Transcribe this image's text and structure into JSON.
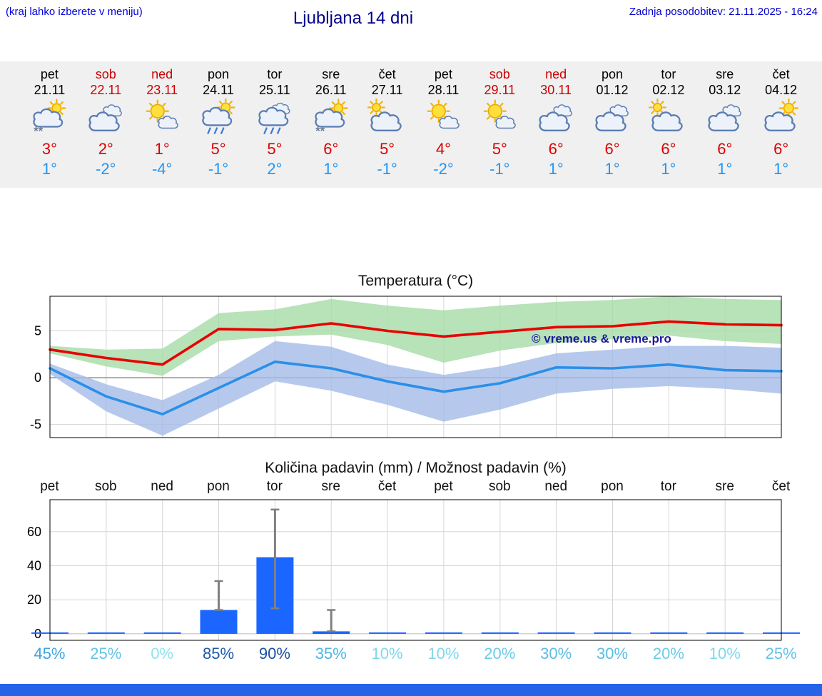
{
  "header": {
    "menu_note": "(kraj lahko izberete v meniju)",
    "title": "Ljubljana 14 dni",
    "last_update": "Zadnja posodobitev: 21.11.2025 - 16:24"
  },
  "colors": {
    "accent_blue": "#0000cc",
    "weekend_red": "#cc0000",
    "temp_max_red": "#dd0000",
    "temp_min_blue": "#2196f3",
    "bar_blue": "#1a66ff",
    "footer_blue": "#2563e8"
  },
  "forecast_strip": {
    "days": [
      {
        "name": "pet",
        "date": "21.11",
        "weekend": false,
        "icon": "sun-cloud-snow",
        "tmax": "3°",
        "tmin": "1°"
      },
      {
        "name": "sob",
        "date": "22.11",
        "weekend": true,
        "icon": "cloud",
        "tmax": "2°",
        "tmin": "-2°"
      },
      {
        "name": "ned",
        "date": "23.11",
        "weekend": true,
        "icon": "sun-small-cloud",
        "tmax": "1°",
        "tmin": "-4°"
      },
      {
        "name": "pon",
        "date": "24.11",
        "weekend": false,
        "icon": "sun-cloud-rain",
        "tmax": "5°",
        "tmin": "-1°"
      },
      {
        "name": "tor",
        "date": "25.11",
        "weekend": false,
        "icon": "cloud-rain",
        "tmax": "5°",
        "tmin": "2°"
      },
      {
        "name": "sre",
        "date": "26.11",
        "weekend": false,
        "icon": "sun-cloud-snow",
        "tmax": "6°",
        "tmin": "1°"
      },
      {
        "name": "čet",
        "date": "27.11",
        "weekend": false,
        "icon": "cloud-sun",
        "tmax": "5°",
        "tmin": "-1°"
      },
      {
        "name": "pet",
        "date": "28.11",
        "weekend": false,
        "icon": "sun-small-cloud",
        "tmax": "4°",
        "tmin": "-2°"
      },
      {
        "name": "sob",
        "date": "29.11",
        "weekend": true,
        "icon": "sun-small-cloud",
        "tmax": "5°",
        "tmin": "-1°"
      },
      {
        "name": "ned",
        "date": "30.11",
        "weekend": true,
        "icon": "cloud",
        "tmax": "6°",
        "tmin": "1°"
      },
      {
        "name": "pon",
        "date": "01.12",
        "weekend": false,
        "icon": "cloud",
        "tmax": "6°",
        "tmin": "1°"
      },
      {
        "name": "tor",
        "date": "02.12",
        "weekend": false,
        "icon": "cloud-sun",
        "tmax": "6°",
        "tmin": "1°"
      },
      {
        "name": "sre",
        "date": "03.12",
        "weekend": false,
        "icon": "cloud",
        "tmax": "6°",
        "tmin": "1°"
      },
      {
        "name": "čet",
        "date": "04.12",
        "weekend": false,
        "icon": "sun-cloud",
        "tmax": "6°",
        "tmin": "1°"
      }
    ]
  },
  "chart_data": [
    {
      "type": "line",
      "title": "Temperatura (°C)",
      "watermark": "© vreme.us & vreme.pro",
      "x_labels": [
        "pet",
        "sob",
        "ned",
        "pon",
        "tor",
        "sre",
        "čet",
        "pet",
        "sob",
        "ned",
        "pon",
        "tor",
        "sre",
        "čet"
      ],
      "ylim": [
        -6.4,
        8.7
      ],
      "yticks": [
        -5,
        0,
        5
      ],
      "grid": true,
      "legend": "none",
      "series": [
        {
          "key": "tmax",
          "color": "#e80000",
          "values": [
            3.0,
            2.1,
            1.4,
            5.2,
            5.1,
            5.8,
            5.0,
            4.4,
            4.9,
            5.4,
            5.5,
            6.0,
            5.7,
            5.6
          ]
        },
        {
          "key": "tmin",
          "color": "#2b8fe8",
          "values": [
            1.0,
            -2.0,
            -3.9,
            -1.1,
            1.7,
            1.0,
            -0.4,
            -1.5,
            -0.6,
            1.1,
            1.0,
            1.4,
            0.8,
            0.7
          ]
        }
      ],
      "bands": [
        {
          "key": "tmax-range",
          "color": "#a6dba6",
          "upper": [
            3.4,
            3.0,
            3.1,
            6.9,
            7.3,
            8.4,
            7.7,
            7.2,
            7.7,
            8.1,
            8.3,
            8.7,
            8.4,
            8.3
          ],
          "lower": [
            2.6,
            1.2,
            0.2,
            3.9,
            4.4,
            4.6,
            3.5,
            1.6,
            2.9,
            3.7,
            4.1,
            4.5,
            3.9,
            3.6
          ]
        },
        {
          "key": "tmin-range",
          "color": "#a4bce8",
          "upper": [
            1.5,
            -0.7,
            -2.4,
            0.3,
            3.9,
            3.3,
            1.4,
            0.3,
            1.2,
            2.6,
            3.0,
            3.4,
            3.4,
            3.2
          ],
          "lower": [
            0.4,
            -3.6,
            -6.2,
            -3.3,
            -0.4,
            -1.4,
            -2.9,
            -4.7,
            -3.4,
            -1.7,
            -1.2,
            -0.9,
            -1.2,
            -1.7
          ]
        }
      ]
    },
    {
      "type": "bar",
      "title": "Količina padavin (mm) / Možnost padavin (%)",
      "categories": [
        "pet",
        "sob",
        "ned",
        "pon",
        "tor",
        "sre",
        "čet",
        "pet",
        "sob",
        "ned",
        "pon",
        "tor",
        "sre",
        "čet"
      ],
      "values": [
        0,
        0,
        0,
        14,
        45,
        1.5,
        0,
        0,
        0,
        0,
        0,
        0,
        0,
        0
      ],
      "error_bars": [
        null,
        null,
        null,
        {
          "lo": 14,
          "hi": 31
        },
        {
          "lo": 15,
          "hi": 73
        },
        {
          "lo": 1.5,
          "hi": 14
        },
        null,
        null,
        null,
        null,
        null,
        null,
        null,
        null
      ],
      "ylim": [
        -3.8,
        78.8
      ],
      "yticks": [
        0,
        20,
        40,
        60
      ],
      "bar_color": "#1a66ff",
      "probability_percent": [
        45,
        25,
        0,
        85,
        90,
        35,
        10,
        10,
        20,
        30,
        30,
        20,
        10,
        25
      ],
      "probability_labels": [
        "45%",
        "25%",
        "0%",
        "85%",
        "90%",
        "35%",
        "10%",
        "10%",
        "20%",
        "30%",
        "30%",
        "20%",
        "10%",
        "25%"
      ]
    }
  ]
}
